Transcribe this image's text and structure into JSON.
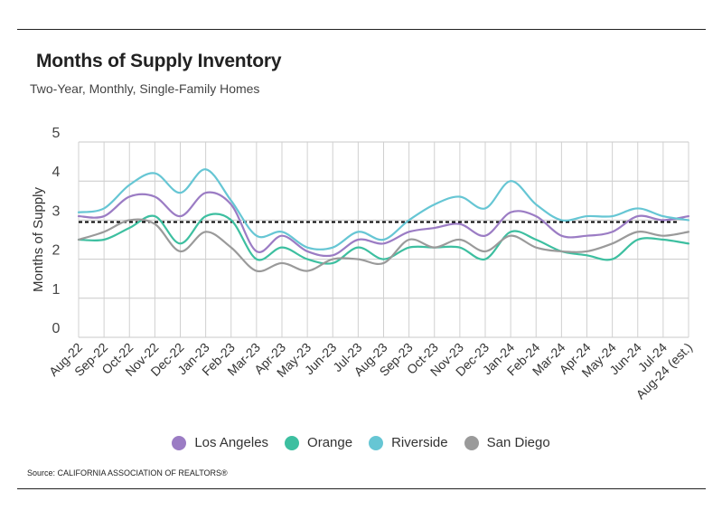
{
  "title": "Months of Supply Inventory",
  "subtitle": "Two-Year, Monthly, Single-Family Homes",
  "source": "Source:  CALIFORNIA ASSOCIATION OF REALTORS®",
  "chart_data": {
    "type": "line",
    "ylabel": "Months of Supply",
    "xlabel": "",
    "ylim": [
      0,
      5
    ],
    "yticks": [
      "0",
      "1",
      "2",
      "3",
      "4",
      "5"
    ],
    "grid": true,
    "legend_position": "bottom",
    "categories": [
      "Aug-22",
      "Sep-22",
      "Oct-22",
      "Nov-22",
      "Dec-22",
      "Jan-23",
      "Feb-23",
      "Mar-23",
      "Apr-23",
      "May-23",
      "Jun-23",
      "Jul-23",
      "Aug-23",
      "Sep-23",
      "Oct-23",
      "Nov-23",
      "Dec-23",
      "Jan-24",
      "Feb-24",
      "Mar-24",
      "Apr-24",
      "May-24",
      "Jun-24",
      "Jul-24",
      "Aug-24 (est.)"
    ],
    "reference_line": {
      "value": 2.95,
      "style": "dashed",
      "color": "#000000"
    },
    "series": [
      {
        "name": "Los Angeles",
        "color": "#9b7cc4",
        "values": [
          3.1,
          3.1,
          3.6,
          3.6,
          3.1,
          3.7,
          3.4,
          2.2,
          2.6,
          2.2,
          2.1,
          2.5,
          2.4,
          2.7,
          2.8,
          2.9,
          2.6,
          3.2,
          3.1,
          2.6,
          2.6,
          2.7,
          3.1,
          3.0,
          3.1
        ]
      },
      {
        "name": "Orange",
        "color": "#3dbfa0",
        "values": [
          2.5,
          2.5,
          2.8,
          3.1,
          2.4,
          3.1,
          3.0,
          2.0,
          2.3,
          2.0,
          1.9,
          2.3,
          2.0,
          2.3,
          2.3,
          2.3,
          2.0,
          2.7,
          2.5,
          2.2,
          2.1,
          2.0,
          2.5,
          2.5,
          2.4
        ]
      },
      {
        "name": "Riverside",
        "color": "#66c6d4",
        "values": [
          3.2,
          3.3,
          3.9,
          4.2,
          3.7,
          4.3,
          3.5,
          2.6,
          2.7,
          2.3,
          2.3,
          2.7,
          2.5,
          3.0,
          3.4,
          3.6,
          3.3,
          4.0,
          3.4,
          3.0,
          3.1,
          3.1,
          3.3,
          3.1,
          3.0
        ]
      },
      {
        "name": "San Diego",
        "color": "#9a9a9a",
        "values": [
          2.5,
          2.7,
          3.0,
          2.9,
          2.2,
          2.7,
          2.3,
          1.7,
          1.9,
          1.7,
          2.0,
          2.0,
          1.9,
          2.5,
          2.3,
          2.5,
          2.2,
          2.6,
          2.3,
          2.2,
          2.2,
          2.4,
          2.7,
          2.6,
          2.7
        ]
      }
    ]
  }
}
